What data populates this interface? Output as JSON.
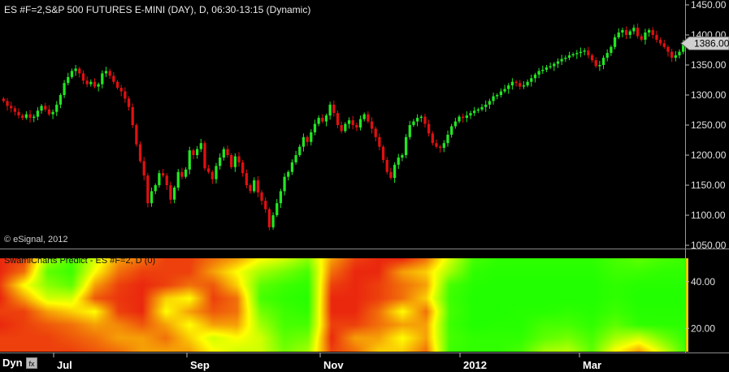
{
  "price_title": "ES #F=2,S&P 500 FUTURES E-MINI (DAY), D, 06:30-13:15 (Dynamic)",
  "copyright": "© eSignal, 2012",
  "heatmap_title": "SwamiCharts Predict - ES #F=2, D (0)",
  "dyn_label": "Dyn",
  "dyn_button_icon": "fx",
  "colors": {
    "up": "#22e622",
    "down": "#e01010",
    "background": "#000000"
  },
  "chart_data": [
    {
      "type": "candlestick",
      "title": "ES #F=2,S&P 500 FUTURES E-MINI (DAY), D, 06:30-13:15 (Dynamic)",
      "ylim": [
        1050,
        1450
      ],
      "y_ticks": [
        "1450.00",
        "1400.00",
        "1350.00",
        "1300.00",
        "1250.00",
        "1200.00",
        "1150.00",
        "1100.00",
        "1050.00"
      ],
      "x_ticks": [
        "Jul",
        "Sep",
        "Nov",
        "2012",
        "Mar"
      ],
      "last_price": "1386.00",
      "grid": false,
      "closes": [
        1290,
        1282,
        1278,
        1272,
        1266,
        1262,
        1268,
        1262,
        1264,
        1274,
        1282,
        1276,
        1268,
        1272,
        1284,
        1300,
        1320,
        1330,
        1340,
        1344,
        1336,
        1324,
        1318,
        1322,
        1314,
        1318,
        1336,
        1340,
        1332,
        1322,
        1312,
        1306,
        1294,
        1280,
        1250,
        1218,
        1190,
        1166,
        1120,
        1140,
        1150,
        1170,
        1166,
        1150,
        1126,
        1146,
        1172,
        1164,
        1176,
        1208,
        1200,
        1210,
        1220,
        1178,
        1172,
        1160,
        1182,
        1196,
        1210,
        1200,
        1180,
        1198,
        1188,
        1170,
        1150,
        1140,
        1158,
        1138,
        1124,
        1110,
        1080,
        1100,
        1120,
        1140,
        1164,
        1172,
        1188,
        1200,
        1214,
        1230,
        1222,
        1238,
        1252,
        1262,
        1256,
        1266,
        1284,
        1270,
        1250,
        1240,
        1252,
        1258,
        1250,
        1246,
        1260,
        1268,
        1256,
        1244,
        1230,
        1214,
        1192,
        1172,
        1162,
        1184,
        1196,
        1200,
        1230,
        1250,
        1256,
        1262,
        1264,
        1252,
        1236,
        1220,
        1214,
        1212,
        1220,
        1234,
        1248,
        1256,
        1264,
        1262,
        1266,
        1270,
        1274,
        1276,
        1280,
        1284,
        1290,
        1298,
        1300,
        1306,
        1310,
        1316,
        1322,
        1320,
        1314,
        1316,
        1322,
        1328,
        1334,
        1340,
        1342,
        1346,
        1348,
        1352,
        1356,
        1360,
        1362,
        1366,
        1368,
        1370,
        1372,
        1374,
        1366,
        1358,
        1348,
        1350,
        1362,
        1370,
        1380,
        1396,
        1404,
        1408,
        1400,
        1406,
        1412,
        1398,
        1392,
        1404,
        1408,
        1400,
        1392,
        1386,
        1380,
        1372,
        1362,
        1366,
        1372,
        1386
      ]
    },
    {
      "type": "heatmap",
      "title": "SwamiCharts Predict - ES #F=2, D (0)",
      "y_ticks": [
        "40.00",
        "20.00"
      ],
      "colorscale": [
        "#e81010",
        "#ffff00",
        "#18ff00"
      ],
      "columns": [
        [
          0.05,
          0.05,
          0.1,
          0.05,
          0.1,
          0.05,
          0.1,
          0.1
        ],
        [
          0.1,
          0.2,
          0.5,
          0.3,
          0.1,
          0.1,
          0.1,
          0.1
        ],
        [
          0.7,
          0.85,
          0.75,
          0.6,
          0.3,
          0.15,
          0.1,
          0.1
        ],
        [
          0.9,
          0.92,
          0.85,
          0.6,
          0.4,
          0.2,
          0.15,
          0.1
        ],
        [
          0.6,
          0.5,
          0.3,
          0.15,
          0.5,
          0.3,
          0.2,
          0.15
        ],
        [
          0.3,
          0.2,
          0.1,
          0.08,
          0.1,
          0.25,
          0.3,
          0.2
        ],
        [
          0.2,
          0.1,
          0.05,
          0.05,
          0.05,
          0.15,
          0.3,
          0.3
        ],
        [
          0.1,
          0.1,
          0.1,
          0.4,
          0.5,
          0.3,
          0.2,
          0.3
        ],
        [
          0.1,
          0.1,
          0.2,
          0.5,
          0.3,
          0.5,
          0.4,
          0.3
        ],
        [
          0.2,
          0.3,
          0.15,
          0.1,
          0.15,
          0.3,
          0.6,
          0.5
        ],
        [
          0.3,
          0.5,
          0.4,
          0.2,
          0.2,
          0.3,
          0.5,
          0.6
        ],
        [
          0.5,
          0.7,
          0.85,
          0.9,
          0.8,
          0.7,
          0.6,
          0.6
        ],
        [
          0.6,
          0.8,
          0.92,
          0.95,
          0.92,
          0.9,
          0.85,
          0.8
        ],
        [
          0.75,
          0.9,
          0.95,
          0.97,
          0.95,
          0.9,
          0.8,
          0.7
        ],
        [
          0.3,
          0.2,
          0.1,
          0.05,
          0.05,
          0.1,
          0.05,
          0.1
        ],
        [
          0.1,
          0.05,
          0.05,
          0.05,
          0.05,
          0.1,
          0.3,
          0.2
        ],
        [
          0.05,
          0.05,
          0.1,
          0.1,
          0.2,
          0.2,
          0.3,
          0.4
        ],
        [
          0.05,
          0.3,
          0.2,
          0.2,
          0.5,
          0.3,
          0.5,
          0.4
        ],
        [
          0.2,
          0.4,
          0.3,
          0.4,
          0.2,
          0.3,
          0.3,
          0.2
        ],
        [
          0.6,
          0.7,
          0.9,
          0.92,
          0.9,
          0.92,
          0.9,
          0.92
        ],
        [
          0.9,
          0.95,
          0.97,
          0.98,
          0.98,
          0.98,
          0.95,
          0.95
        ],
        [
          0.95,
          0.97,
          0.98,
          0.98,
          0.98,
          0.97,
          0.95,
          0.95
        ],
        [
          0.95,
          0.97,
          0.98,
          0.98,
          0.97,
          0.97,
          0.95,
          0.9
        ],
        [
          0.95,
          0.97,
          0.98,
          0.98,
          0.97,
          0.9,
          0.85,
          0.7
        ],
        [
          0.95,
          0.97,
          0.98,
          0.98,
          0.95,
          0.9,
          0.8,
          0.65
        ],
        [
          0.95,
          0.97,
          0.98,
          0.98,
          0.97,
          0.95,
          0.9,
          0.85
        ],
        [
          0.9,
          0.92,
          0.95,
          0.95,
          0.92,
          0.85,
          0.7,
          0.5
        ],
        [
          0.85,
          0.92,
          0.97,
          0.98,
          0.97,
          0.95,
          0.6,
          0.3
        ],
        [
          0.9,
          0.95,
          0.97,
          0.98,
          0.97,
          0.96,
          0.8,
          0.6
        ],
        [
          0.92,
          0.95,
          0.97,
          0.98,
          0.97,
          0.96,
          0.95,
          0.92
        ]
      ]
    }
  ]
}
